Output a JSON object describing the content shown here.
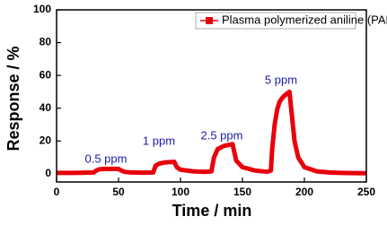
{
  "chart_data": {
    "type": "line",
    "x_label": "Time / min",
    "y_label": "Response / %",
    "x": [
      0,
      10,
      20,
      30,
      32,
      35,
      40,
      45,
      50,
      52,
      55,
      60,
      70,
      78,
      80,
      83,
      88,
      93,
      95,
      97,
      100,
      110,
      120,
      125,
      127,
      130,
      135,
      140,
      142,
      145,
      150,
      160,
      170,
      173,
      174,
      176,
      178,
      180,
      183,
      186,
      188,
      190,
      192,
      195,
      200,
      210,
      220,
      230,
      240,
      250
    ],
    "series": [
      {
        "name": "Plasma polymerized aniline (PANI)",
        "color": "#e8000b",
        "values": [
          0.5,
          0.5,
          0.6,
          0.8,
          2,
          2.8,
          3,
          3,
          3,
          2,
          1.2,
          0.8,
          0.7,
          0.8,
          5,
          6.2,
          7,
          7.2,
          7.3,
          4,
          2.5,
          1.5,
          1.2,
          1.5,
          10,
          15,
          17,
          17.8,
          18,
          8,
          4,
          2,
          1.2,
          2,
          15,
          30,
          39,
          44,
          47,
          49,
          50,
          35,
          20,
          10,
          4,
          1.5,
          0.8,
          0.5,
          0.4,
          0.3
        ]
      }
    ],
    "annotations": [
      "0.5 ppm",
      "1 ppm",
      "2.5 ppm",
      "5 ppm"
    ],
    "annotation_color": "#1a1aa8",
    "xlim": [
      0,
      250
    ],
    "xticks": [
      0,
      50,
      100,
      150,
      200,
      250
    ],
    "ylim": [
      -5,
      100
    ],
    "yticks": [
      0,
      20,
      40,
      60,
      80,
      100
    ],
    "legend": "upper right"
  }
}
